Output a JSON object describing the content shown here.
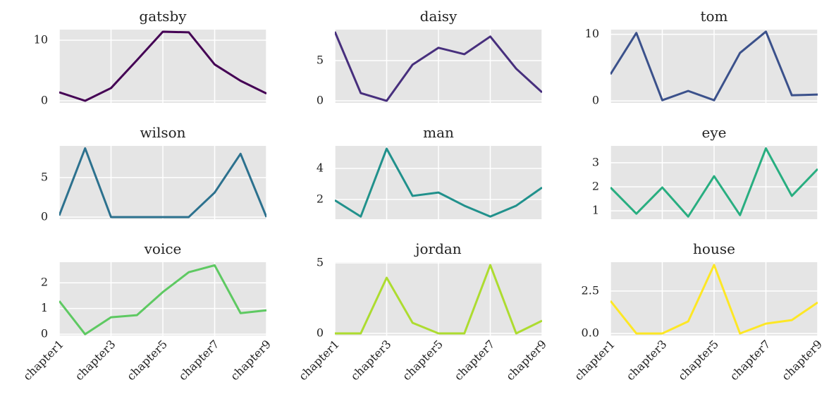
{
  "chart_data": [
    {
      "type": "line",
      "title": "gatsby",
      "color": "#440154",
      "values": [
        1.4,
        0,
        2.1,
        6.7,
        11.4,
        11.3,
        6.0,
        3.3,
        1.2
      ],
      "ylim": [
        -0.35,
        11.75
      ],
      "yticks": [
        0,
        10
      ],
      "grid": true
    },
    {
      "type": "line",
      "title": "daisy",
      "color": "#472f7d",
      "values": [
        8.6,
        0.96,
        0,
        4.5,
        6.6,
        5.8,
        8.0,
        4.0,
        1.05
      ],
      "ylim": [
        -0.26,
        8.86
      ],
      "yticks": [
        0,
        5
      ],
      "grid": true
    },
    {
      "type": "line",
      "title": "tom",
      "color": "#3b518b",
      "values": [
        4.0,
        10.2,
        0.1,
        1.5,
        0.1,
        7.2,
        10.4,
        0.85,
        0.95
      ],
      "ylim": [
        -0.3,
        10.7
      ],
      "yticks": [
        0,
        10
      ],
      "grid": true
    },
    {
      "type": "line",
      "title": "wilson",
      "color": "#2c718e",
      "values": [
        0.2,
        8.7,
        0,
        0,
        0,
        0,
        3.1,
        8.0,
        0
      ],
      "ylim": [
        -0.27,
        9.0
      ],
      "yticks": [
        0,
        5
      ],
      "grid": true
    },
    {
      "type": "line",
      "title": "man",
      "color": "#21918c",
      "values": [
        1.95,
        0.9,
        5.27,
        2.23,
        2.45,
        1.6,
        0.9,
        1.6,
        2.77
      ],
      "ylim": [
        0.73,
        5.45
      ],
      "yticks": [
        2,
        4
      ],
      "grid": true
    },
    {
      "type": "line",
      "title": "eye",
      "color": "#28ae80",
      "values": [
        1.97,
        0.88,
        1.97,
        0.76,
        2.44,
        0.82,
        3.6,
        1.62,
        2.74
      ],
      "ylim": [
        0.65,
        3.7
      ],
      "yticks": [
        1,
        2,
        3
      ],
      "grid": true
    },
    {
      "type": "line",
      "title": "voice",
      "color": "#5ec962",
      "values": [
        1.29,
        0,
        0.66,
        0.74,
        1.64,
        2.41,
        2.68,
        0.82,
        0.93
      ],
      "ylim": [
        -0.05,
        2.8
      ],
      "yticks": [
        0,
        1,
        2
      ],
      "grid": true,
      "categories": [
        "chapter1",
        null,
        "chapter3",
        null,
        "chapter5",
        null,
        "chapter7",
        null,
        "chapter9"
      ]
    },
    {
      "type": "line",
      "title": "jordan",
      "color": "#addc30",
      "values": [
        0,
        0,
        3.95,
        0.75,
        0,
        0,
        4.85,
        0,
        0.9
      ],
      "ylim": [
        -0.15,
        5.05
      ],
      "yticks": [
        0,
        5
      ],
      "grid": true,
      "categories": [
        "chapter1",
        null,
        "chapter3",
        null,
        "chapter5",
        null,
        "chapter7",
        null,
        "chapter9"
      ]
    },
    {
      "type": "line",
      "title": "house",
      "color": "#fde725",
      "values": [
        1.92,
        0,
        0,
        0.71,
        4.04,
        0,
        0.58,
        0.79,
        1.83
      ],
      "ylim": [
        -0.12,
        4.2
      ],
      "yticks": [
        {
          "value": 0,
          "label": "0.0"
        },
        2.5
      ],
      "grid": true,
      "categories": [
        "chapter1",
        null,
        "chapter3",
        null,
        "chapter5",
        null,
        "chapter7",
        null,
        "chapter9"
      ]
    }
  ]
}
